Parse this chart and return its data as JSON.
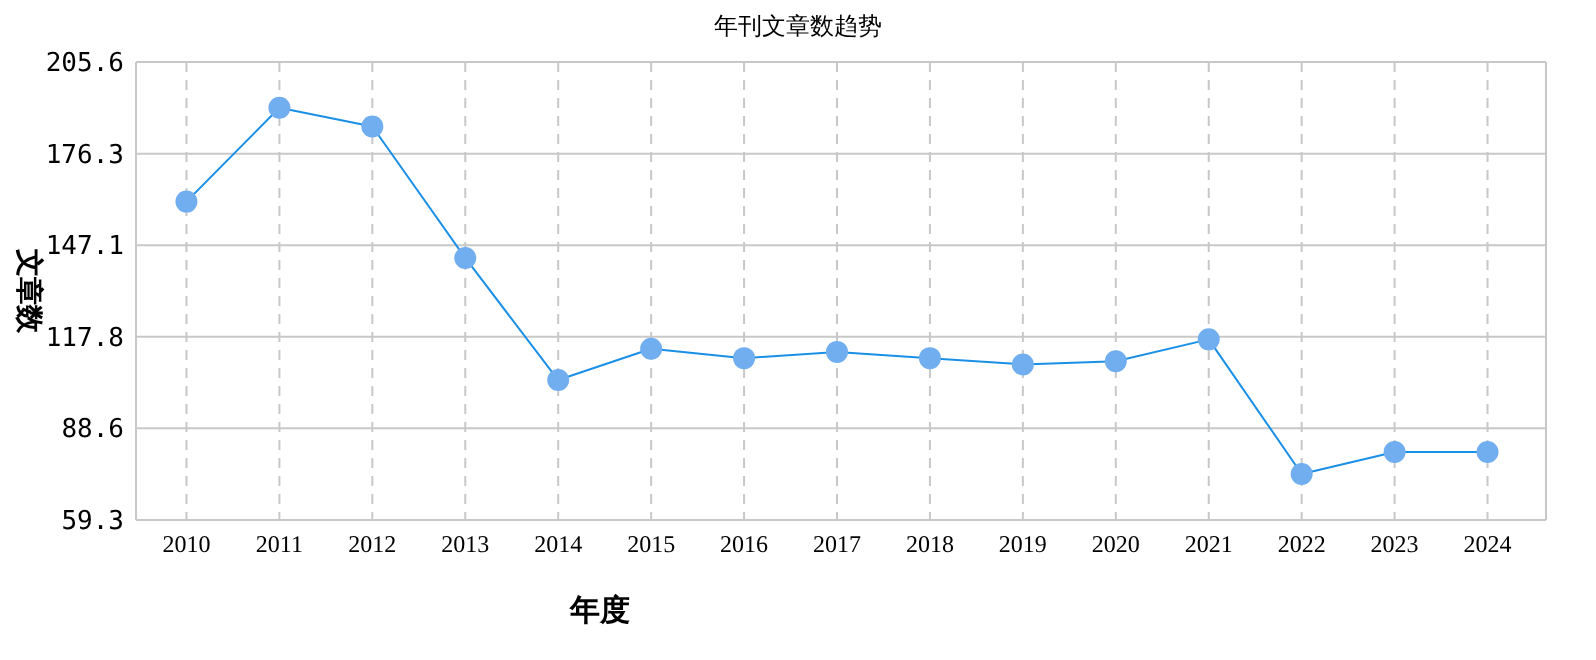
{
  "chart_data": {
    "type": "line",
    "title": "年刊文章数趋势",
    "xlabel": "年度",
    "ylabel": "文章数",
    "categories": [
      "2010",
      "2011",
      "2012",
      "2013",
      "2014",
      "2015",
      "2016",
      "2017",
      "2018",
      "2019",
      "2020",
      "2021",
      "2022",
      "2023",
      "2024"
    ],
    "series": [
      {
        "color": "#1a8fe6",
        "values": [
          161,
          191,
          185,
          143,
          104,
          114,
          111,
          113,
          111,
          109,
          110,
          117,
          74,
          81,
          81
        ]
      }
    ],
    "ylim": [
      59.3,
      205.6
    ],
    "yticks": [
      59.3,
      88.6,
      117.8,
      147.1,
      176.3,
      205.6
    ],
    "grid": true,
    "marker": "circle",
    "line_style": "solid"
  }
}
